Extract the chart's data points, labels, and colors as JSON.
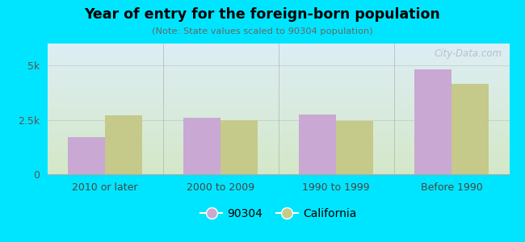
{
  "title": "Year of entry for the foreign-born population",
  "subtitle": "(Note: State values scaled to 90304 population)",
  "categories": [
    "2010 or later",
    "2000 to 2009",
    "1990 to 1999",
    "Before 1990"
  ],
  "values_90304": [
    1700,
    2600,
    2750,
    4800
  ],
  "values_california": [
    2700,
    2500,
    2450,
    4150
  ],
  "bar_color_90304": "#c9a8d4",
  "bar_color_california": "#c5c98a",
  "background_color": "#00e5ff",
  "plot_bg_top": "#ddeef5",
  "plot_bg_bottom": "#d4e8c8",
  "ylim": [
    0,
    6000
  ],
  "yticks": [
    0,
    2500,
    5000
  ],
  "ytick_labels": [
    "0",
    "2.5k",
    "5k"
  ],
  "legend_label_90304": "90304",
  "legend_label_california": "California",
  "watermark": "City-Data.com",
  "bar_width": 0.32
}
